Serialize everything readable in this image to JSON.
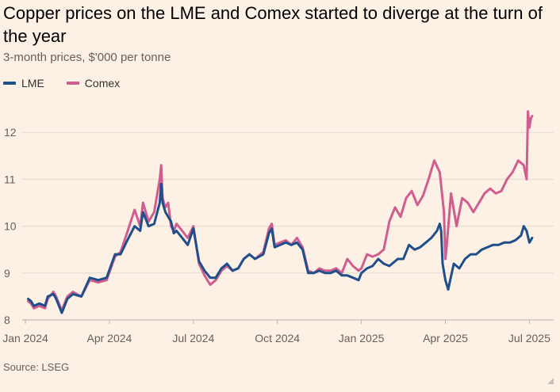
{
  "header": {
    "title": "Copper prices on the LME and Comex started to diverge at the turn of the year",
    "subtitle": "3-month prices, $'000 per tonne"
  },
  "source": "Source: LSEG",
  "colors": {
    "lme": "#1e4f8b",
    "comex": "#cf5e8f",
    "grid": "#e3d9cf",
    "background": "#fdf1e5"
  },
  "chart_data": {
    "type": "line",
    "title": "Copper prices on the LME and Comex started to diverge at the turn of the year",
    "subtitle": "3-month prices, $'000 per tonne",
    "xlabel": "",
    "ylabel": "",
    "x_unit": "months since Jan 2024",
    "xlim": [
      0,
      18.4
    ],
    "ylim": [
      8,
      12.5
    ],
    "y_ticks": [
      8,
      9,
      10,
      11,
      12
    ],
    "x_ticks": [
      {
        "x": 0,
        "label": "Jan 2024"
      },
      {
        "x": 3,
        "label": "Apr 2024"
      },
      {
        "x": 6,
        "label": "Jul 2024"
      },
      {
        "x": 9,
        "label": "Oct 2024"
      },
      {
        "x": 12,
        "label": "Jan 2025"
      },
      {
        "x": 15,
        "label": "Apr 2025"
      },
      {
        "x": 18,
        "label": "Jul 2025"
      }
    ],
    "grid": true,
    "legend_position": "top-left",
    "series": [
      {
        "name": "LME",
        "x": [
          0.1,
          0.2,
          0.3,
          0.5,
          0.7,
          0.8,
          1.0,
          1.1,
          1.3,
          1.5,
          1.7,
          2.0,
          2.3,
          2.6,
          2.9,
          3.2,
          3.4,
          3.6,
          3.9,
          4.1,
          4.2,
          4.4,
          4.6,
          4.8,
          4.85,
          4.9,
          5.0,
          5.1,
          5.2,
          5.3,
          5.4,
          5.6,
          5.8,
          6.0,
          6.2,
          6.4,
          6.6,
          6.8,
          7.0,
          7.2,
          7.4,
          7.6,
          7.8,
          8.0,
          8.2,
          8.5,
          8.7,
          8.8,
          8.9,
          9.1,
          9.3,
          9.5,
          9.7,
          9.9,
          10.1,
          10.3,
          10.5,
          10.7,
          10.9,
          11.1,
          11.3,
          11.5,
          11.7,
          11.9,
          12.0,
          12.2,
          12.4,
          12.6,
          12.8,
          13.0,
          13.3,
          13.5,
          13.7,
          13.9,
          14.1,
          14.3,
          14.5,
          14.7,
          14.8,
          14.85,
          14.9,
          15.0,
          15.1,
          15.3,
          15.5,
          15.7,
          15.9,
          16.1,
          16.3,
          16.5,
          16.7,
          16.9,
          17.1,
          17.3,
          17.5,
          17.7,
          17.8,
          17.9,
          18.0,
          18.1
        ],
        "values": [
          8.45,
          8.4,
          8.3,
          8.35,
          8.3,
          8.5,
          8.55,
          8.45,
          8.15,
          8.45,
          8.55,
          8.5,
          8.9,
          8.85,
          8.9,
          9.4,
          9.4,
          9.65,
          10.0,
          9.9,
          10.3,
          10.0,
          10.05,
          10.5,
          10.9,
          10.5,
          10.3,
          10.2,
          10.1,
          9.85,
          9.9,
          9.75,
          9.6,
          9.95,
          9.25,
          9.05,
          8.9,
          8.9,
          9.1,
          9.2,
          9.05,
          9.1,
          9.3,
          9.4,
          9.3,
          9.4,
          9.85,
          9.95,
          9.55,
          9.6,
          9.65,
          9.6,
          9.65,
          9.5,
          9.0,
          9.0,
          9.05,
          9.0,
          9.0,
          9.05,
          8.95,
          8.95,
          8.9,
          8.85,
          9.0,
          9.1,
          9.15,
          9.3,
          9.2,
          9.15,
          9.3,
          9.3,
          9.6,
          9.5,
          9.55,
          9.65,
          9.75,
          9.9,
          10.05,
          9.9,
          9.2,
          8.85,
          8.65,
          9.2,
          9.1,
          9.3,
          9.4,
          9.4,
          9.5,
          9.55,
          9.6,
          9.6,
          9.65,
          9.65,
          9.7,
          9.8,
          10.0,
          9.9,
          9.65,
          9.75
        ]
      },
      {
        "name": "Comex",
        "x": [
          0.1,
          0.2,
          0.3,
          0.5,
          0.7,
          0.8,
          1.0,
          1.1,
          1.3,
          1.5,
          1.7,
          2.0,
          2.3,
          2.6,
          2.9,
          3.2,
          3.4,
          3.6,
          3.9,
          4.1,
          4.2,
          4.4,
          4.6,
          4.8,
          4.85,
          4.9,
          5.0,
          5.1,
          5.2,
          5.3,
          5.4,
          5.6,
          5.8,
          6.0,
          6.2,
          6.4,
          6.6,
          6.8,
          7.0,
          7.2,
          7.4,
          7.6,
          7.8,
          8.0,
          8.2,
          8.5,
          8.7,
          8.8,
          8.9,
          9.1,
          9.3,
          9.5,
          9.7,
          9.9,
          10.1,
          10.3,
          10.5,
          10.7,
          10.9,
          11.1,
          11.3,
          11.5,
          11.7,
          11.9,
          12.0,
          12.2,
          12.4,
          12.6,
          12.8,
          13.0,
          13.2,
          13.4,
          13.6,
          13.8,
          14.0,
          14.2,
          14.4,
          14.6,
          14.8,
          14.95,
          15.0,
          15.05,
          15.2,
          15.4,
          15.6,
          15.8,
          16.0,
          16.2,
          16.4,
          16.6,
          16.8,
          17.0,
          17.2,
          17.4,
          17.6,
          17.8,
          17.9,
          17.95,
          18.0,
          18.05,
          18.1
        ],
        "values": [
          8.4,
          8.35,
          8.25,
          8.3,
          8.25,
          8.45,
          8.6,
          8.5,
          8.2,
          8.5,
          8.6,
          8.5,
          8.85,
          8.8,
          8.85,
          9.35,
          9.45,
          9.8,
          10.35,
          10.0,
          10.5,
          10.1,
          10.3,
          11.0,
          11.3,
          10.6,
          10.4,
          10.5,
          10.0,
          9.9,
          10.05,
          9.9,
          9.75,
          10.0,
          9.2,
          8.95,
          8.75,
          8.85,
          9.05,
          9.15,
          9.05,
          9.1,
          9.3,
          9.4,
          9.3,
          9.45,
          9.95,
          10.05,
          9.6,
          9.65,
          9.7,
          9.6,
          9.75,
          9.55,
          9.05,
          9.0,
          9.1,
          9.05,
          9.05,
          9.1,
          9.0,
          9.3,
          9.15,
          9.05,
          9.1,
          9.4,
          9.35,
          9.4,
          9.5,
          10.1,
          10.4,
          10.2,
          10.6,
          10.75,
          10.45,
          10.65,
          11.0,
          11.4,
          11.15,
          10.3,
          9.3,
          9.6,
          10.7,
          10.0,
          10.6,
          10.5,
          10.3,
          10.5,
          10.7,
          10.8,
          10.7,
          10.75,
          11.0,
          11.15,
          11.4,
          11.3,
          11.0,
          12.45,
          12.1,
          12.3,
          12.35
        ]
      }
    ]
  }
}
